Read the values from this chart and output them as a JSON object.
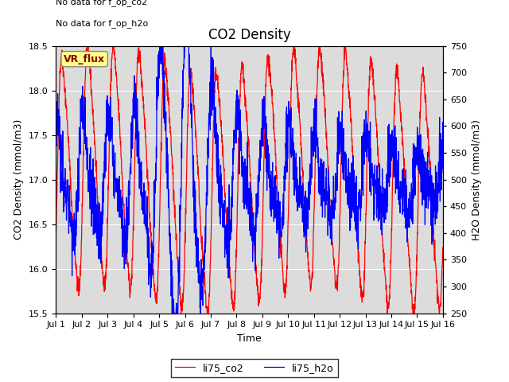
{
  "title": "CO2 Density",
  "xlabel": "Time",
  "ylabel_left": "CO2 Density (mmol/m3)",
  "ylabel_right": "H2O Density (mmol/m3)",
  "ylim_left": [
    15.5,
    18.5
  ],
  "ylim_right": [
    250,
    750
  ],
  "xlim": [
    0,
    15
  ],
  "xtick_labels": [
    "Jul 1",
    "Jul 2",
    "Jul 3",
    "Jul 4",
    "Jul 5",
    "Jul 6",
    "Jul 7",
    "Jul 8",
    "Jul 9",
    "Jul 10",
    "Jul 11",
    "Jul 12",
    "Jul 13",
    "Jul 14",
    "Jul 15",
    "Jul 16"
  ],
  "xtick_positions": [
    0,
    1,
    2,
    3,
    4,
    5,
    6,
    7,
    8,
    9,
    10,
    11,
    12,
    13,
    14,
    15
  ],
  "color_co2": "#FF0000",
  "color_h2o": "#0000FF",
  "label_co2": "li75_co2",
  "label_h2o": "li75_h2o",
  "annotation1": "No data for f_op_co2",
  "annotation2": "No data for f_op_h2o",
  "vr_flux_label": "VR_flux",
  "bg_color": "#DCDCDC",
  "fig_bg": "#FFFFFF",
  "title_fontsize": 12,
  "axis_fontsize": 9,
  "tick_fontsize": 8,
  "legend_fontsize": 9
}
